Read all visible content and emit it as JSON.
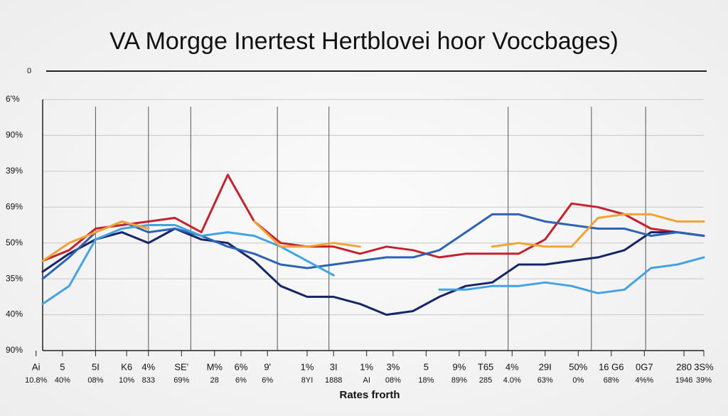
{
  "chart_data": {
    "type": "line",
    "title": "VA Morgge  Inertest Hertblovei hoor  Voccbages)",
    "top_label": "0",
    "x_label": "Rates frorth",
    "x": [
      0,
      4,
      8,
      12,
      16,
      20,
      24,
      28,
      32,
      36,
      40,
      44,
      48,
      52,
      56,
      60,
      64,
      68,
      72,
      76,
      80,
      84,
      88,
      92,
      96,
      100
    ],
    "xlim": [
      0,
      100
    ],
    "ylim": [
      0,
      7
    ],
    "yticks": [
      {
        "value": 7,
        "label": "6'%"
      },
      {
        "value": 6,
        "label": "90%"
      },
      {
        "value": 5,
        "label": "39%"
      },
      {
        "value": 4,
        "label": "69%"
      },
      {
        "value": 3,
        "label": "50%"
      },
      {
        "value": 2,
        "label": "35%"
      },
      {
        "value": 1,
        "label": "40%"
      },
      {
        "value": 0,
        "label": "90%"
      }
    ],
    "xticks": [
      {
        "value": -1,
        "label": "Ai"
      },
      {
        "value": 3,
        "label": "5"
      },
      {
        "value": 8,
        "label": "5I"
      },
      {
        "value": 12.7,
        "label": "K6"
      },
      {
        "value": 16,
        "label": "4%"
      },
      {
        "value": 21,
        "label": "SE'"
      },
      {
        "value": 26,
        "label": "M%"
      },
      {
        "value": 30,
        "label": "6%"
      },
      {
        "value": 34,
        "label": "9'"
      },
      {
        "value": 40,
        "label": "1%"
      },
      {
        "value": 44,
        "label": "3I"
      },
      {
        "value": 49,
        "label": "1%"
      },
      {
        "value": 53,
        "label": "3%"
      },
      {
        "value": 58,
        "label": "5"
      },
      {
        "value": 63,
        "label": "9%"
      },
      {
        "value": 67,
        "label": "T65"
      },
      {
        "value": 71,
        "label": "4%"
      },
      {
        "value": 76,
        "label": "29I"
      },
      {
        "value": 81,
        "label": "50%"
      },
      {
        "value": 86,
        "label": "16 G6"
      },
      {
        "value": 91,
        "label": "0G7"
      },
      {
        "value": 97,
        "label": "280"
      },
      {
        "value": 100,
        "label": "3S%"
      }
    ],
    "xticks_second_row": [
      "10.8%",
      "40%",
      "08%",
      "10%",
      "833",
      "69%",
      "28",
      "6%",
      "6%",
      "8YI",
      "1888",
      "AI",
      "08%",
      "18%",
      "89%",
      "285",
      "4.0%",
      "63%",
      "0%",
      "68%",
      "4%%",
      "1946",
      "39%"
    ],
    "xgrid": [
      8,
      16,
      22.4,
      35.5,
      43.3,
      70.4,
      83,
      91.2
    ],
    "grid": true,
    "series": [
      {
        "name": "Red",
        "color": "#c4232e",
        "values": [
          2.5,
          2.8,
          3.4,
          3.5,
          3.6,
          3.7,
          3.3,
          4.9,
          3.6,
          3.0,
          2.9,
          2.9,
          2.7,
          2.9,
          2.8,
          2.6,
          2.7,
          2.7,
          2.7,
          3.1,
          4.1,
          4.0,
          3.8,
          3.4,
          3.3,
          3.2
        ]
      },
      {
        "name": "Navy",
        "color": "#172565",
        "values": [
          2.2,
          2.7,
          3.1,
          3.3,
          3.0,
          3.4,
          3.1,
          3.0,
          2.5,
          1.8,
          1.5,
          1.5,
          1.3,
          1.0,
          1.1,
          1.5,
          1.8,
          1.9,
          2.4,
          2.4,
          2.5,
          2.6,
          2.8,
          3.3,
          3.3,
          3.2
        ]
      },
      {
        "name": "Blue",
        "color": "#2e62b4",
        "values": [
          2.0,
          2.6,
          3.3,
          3.6,
          3.3,
          3.4,
          3.2,
          2.9,
          2.7,
          2.4,
          2.3,
          2.4,
          2.5,
          2.6,
          2.6,
          2.8,
          3.3,
          3.8,
          3.8,
          3.6,
          3.5,
          3.4,
          3.4,
          3.2,
          3.3,
          3.2
        ]
      },
      {
        "name": "Light blue",
        "color": "#43a3e2",
        "values": [
          1.3,
          1.8,
          3.1,
          3.4,
          3.5,
          3.5,
          3.2,
          3.3,
          3.2,
          2.9,
          2.5,
          2.1,
          null,
          null,
          null,
          1.7,
          1.7,
          1.8,
          1.8,
          1.9,
          1.8,
          1.6,
          1.7,
          2.3,
          2.4,
          2.6
        ]
      },
      {
        "name": "Orange",
        "color": "#f2a335",
        "values": [
          2.5,
          3.0,
          3.3,
          3.6,
          3.4,
          null,
          null,
          null,
          3.6,
          2.9,
          2.9,
          3.0,
          2.9,
          null,
          null,
          null,
          null,
          2.9,
          3.0,
          2.9,
          2.9,
          3.7,
          3.8,
          3.8,
          3.6,
          3.6
        ]
      }
    ]
  }
}
